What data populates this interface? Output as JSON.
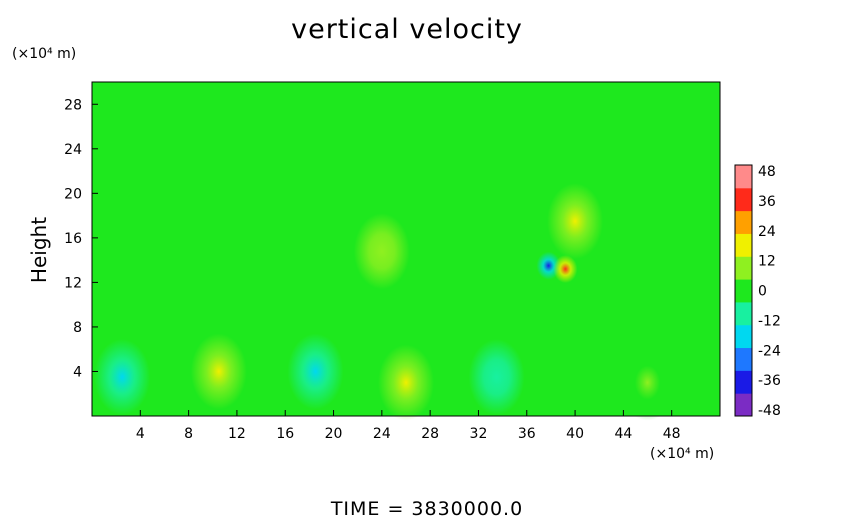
{
  "chart_data": {
    "type": "heatmap",
    "title": "vertical velocity",
    "ylabel": "Height",
    "x_unit": "(×10⁴ m)",
    "y_unit": "(×10⁴ m)",
    "footer": "TIME  =  3830000.0",
    "xlim": [
      0,
      52
    ],
    "ylim": [
      0,
      30
    ],
    "xticks": [
      "4",
      "8",
      "12",
      "16",
      "20",
      "24",
      "28",
      "32",
      "36",
      "40",
      "44",
      "48"
    ],
    "yticks": [
      "4",
      "8",
      "12",
      "16",
      "20",
      "24",
      "28"
    ],
    "colorbar": {
      "range": [
        -48,
        48
      ],
      "ticks": [
        "48",
        "36",
        "24",
        "12",
        "0",
        "-12",
        "-24",
        "-36",
        "-48"
      ],
      "colors": [
        "#7b2cc4",
        "#1a1ae6",
        "#1e78ff",
        "#00d8f0",
        "#18f0a0",
        "#1ee81e",
        "#8ff020",
        "#f0f000",
        "#ffa000",
        "#ff2a1a",
        "#ff8a8a"
      ]
    },
    "background_value": 0,
    "features": [
      {
        "x": 2.5,
        "y": 3.5,
        "value": -15
      },
      {
        "x": 10.5,
        "y": 4,
        "value": 22
      },
      {
        "x": 18.5,
        "y": 4,
        "value": -15
      },
      {
        "x": 26,
        "y": 3,
        "value": 18
      },
      {
        "x": 33.5,
        "y": 3.5,
        "value": -12
      },
      {
        "x": 46,
        "y": 3,
        "value": 8
      },
      {
        "x": 37.8,
        "y": 13.5,
        "value": -38
      },
      {
        "x": 39.2,
        "y": 13.2,
        "value": 34
      },
      {
        "x": 40,
        "y": 17.5,
        "value": 18
      },
      {
        "x": 24,
        "y": 14.8,
        "value": 12
      }
    ]
  }
}
